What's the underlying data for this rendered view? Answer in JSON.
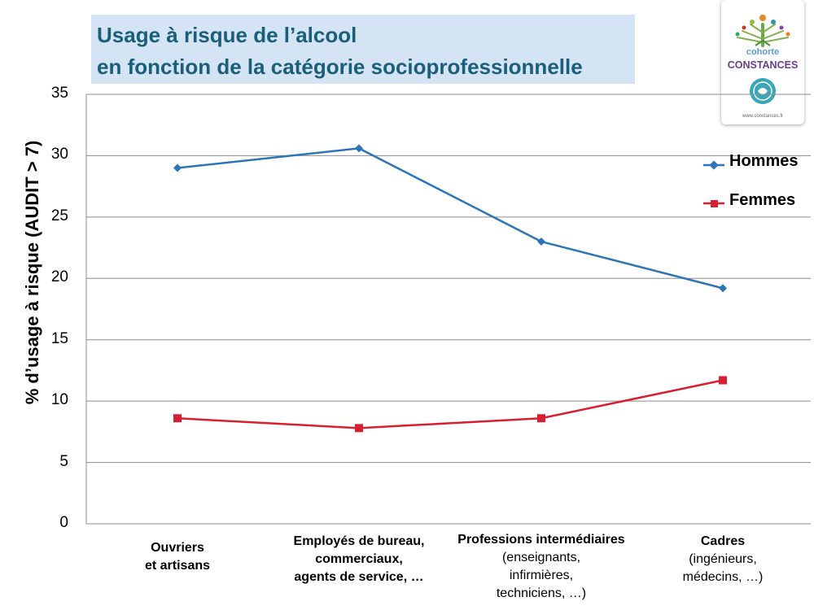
{
  "title": {
    "line1": "Usage à risque de l’alcool",
    "line2": "en fonction de la catégorie socioprofessionnelle"
  },
  "logo": {
    "line1": "cohorte",
    "line2": "CONSTANCES",
    "url": "www.constances.fr"
  },
  "chart_data": {
    "type": "line",
    "ylabel": "% d’usage à risque (AUDIT > 7)",
    "ylim": [
      0,
      35
    ],
    "yticks": [
      "0",
      "5",
      "10",
      "15",
      "20",
      "25",
      "30",
      "35"
    ],
    "grid": true,
    "legend_position": "right",
    "categories": [
      {
        "main": "Ouvriers\net artisans",
        "sub": ""
      },
      {
        "main": "Employés de bureau,\ncommerciaux,\nagents de service, …",
        "sub": ""
      },
      {
        "main": "Professions intermédiaires",
        "sub": "(enseignants,\ninfirmières,\ntechniciens, …)"
      },
      {
        "main": "Cadres",
        "sub": "(ingénieurs,\nmédecins, …)"
      }
    ],
    "series": [
      {
        "name": "Hommes",
        "color": "#2e75b6",
        "marker": "diamond",
        "values": [
          29.0,
          30.6,
          23.0,
          19.2
        ]
      },
      {
        "name": "Femmes",
        "color": "#d62031",
        "marker": "square",
        "values": [
          8.6,
          7.8,
          8.6,
          11.7
        ]
      }
    ]
  }
}
